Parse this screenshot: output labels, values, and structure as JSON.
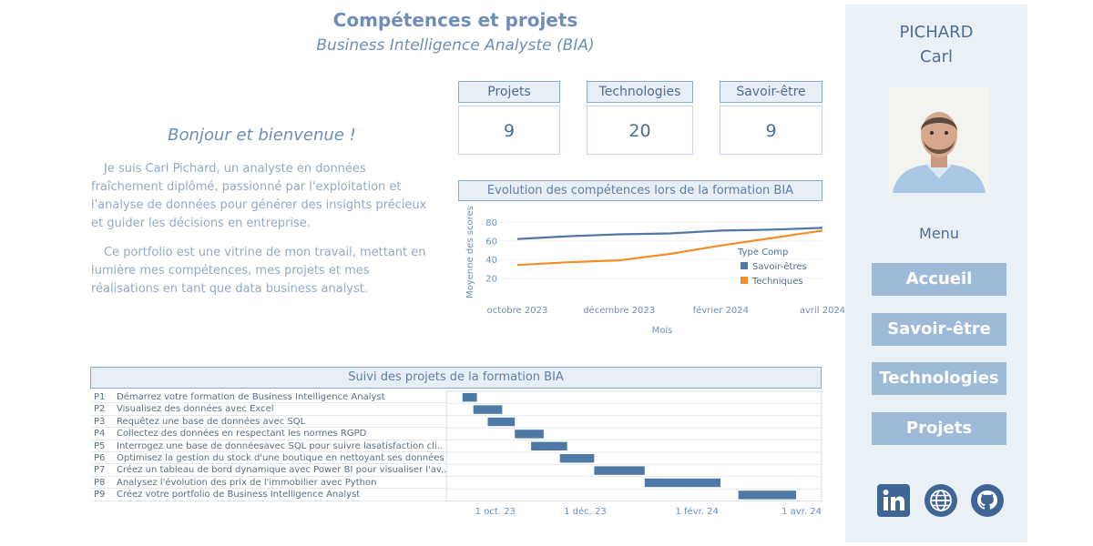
{
  "header": {
    "title": "Compétences et projets",
    "subtitle": "Business Intelligence  Analyste (BIA)"
  },
  "intro": {
    "welcome": "Bonjour et bienvenue !",
    "paragraph1": "Je suis Carl Pichard, un analyste en données fraîchement diplômé, passionné par l'exploitation et l'analyse de données pour générer des insights précieux et guider les décisions en entreprise.",
    "paragraph2": "Ce portfolio est une vitrine de mon travail, mettant en lumière mes compétences, mes projets et mes réalisations en tant que data business analyst."
  },
  "kpis": [
    {
      "label": "Projets",
      "value": "9"
    },
    {
      "label": "Technologies",
      "value": "20"
    },
    {
      "label": "Savoir-être",
      "value": "9"
    }
  ],
  "chart_data": [
    {
      "type": "line",
      "title": "Evolution des compétences lors de la formation BIA",
      "xlabel": "Mois",
      "ylabel": "Moyenne des scores",
      "x": [
        "octobre 2023",
        "novembre 2023",
        "décembre 2023",
        "janvier 2024",
        "février 2024",
        "mars 2024",
        "avril 2024"
      ],
      "x_tick_labels": [
        "octobre 2023",
        "décembre 2023",
        "février 2024",
        "avril 2024"
      ],
      "yticks": [
        20,
        40,
        60,
        80
      ],
      "ylim": [
        0,
        90
      ],
      "legend_title": "Type Comp",
      "series": [
        {
          "name": "Savoir-êtres",
          "color": "#4e79a7",
          "values": [
            62,
            65,
            67,
            68,
            71,
            72,
            74
          ]
        },
        {
          "name": "Techniques",
          "color": "#f28e2b",
          "values": [
            34,
            37,
            39,
            46,
            55,
            63,
            71
          ]
        }
      ]
    },
    {
      "type": "gantt",
      "title": "Suivi des projets de la formation BIA",
      "color": "#4e79a7",
      "axis_range": [
        "2023-09-15",
        "2024-04-01"
      ],
      "axis_ticks": [
        {
          "label": "1 oct. 23",
          "date": "2023-10-01"
        },
        {
          "label": "1 déc. 23",
          "date": "2023-12-01"
        },
        {
          "label": "1 févr. 24",
          "date": "2024-02-01"
        },
        {
          "label": "1 avr. 24",
          "date": "2024-04-01"
        }
      ],
      "tasks": [
        {
          "id": "P1",
          "name": "Démarrez votre formation de Business Intelligence Analyst",
          "start": "2023-09-24",
          "end": "2023-10-02"
        },
        {
          "id": "P2",
          "name": "Visualisez des données avec Excel",
          "start": "2023-09-30",
          "end": "2023-10-16"
        },
        {
          "id": "P3",
          "name": "Requêtez une base de données avec SQL",
          "start": "2023-10-08",
          "end": "2023-10-23"
        },
        {
          "id": "P4",
          "name": "Collectez des données en respectant les normes RGPD",
          "start": "2023-10-23",
          "end": "2023-11-08"
        },
        {
          "id": "P5",
          "name": "Interrogez une base de donnéesavec SQL pour suivre lasatisfaction cli..",
          "start": "2023-11-01",
          "end": "2023-11-21"
        },
        {
          "id": "P6",
          "name": "Optimisez la gestion du stock d'une boutique en nettoyant ses données",
          "start": "2023-11-17",
          "end": "2023-12-06"
        },
        {
          "id": "P7",
          "name": "Créez un tableau de bord dynamique avec Power BI pour visualiser l'av..",
          "start": "2023-12-06",
          "end": "2024-01-03"
        },
        {
          "id": "P8",
          "name": "Analysez l'évolution des prix de l'immobilier avec Python",
          "start": "2024-01-03",
          "end": "2024-02-14"
        },
        {
          "id": "P9",
          "name": "Créez votre portfolio de Business Intelligence Analyst",
          "start": "2024-02-24",
          "end": "2024-03-27"
        }
      ]
    }
  ],
  "sidebar": {
    "last_name": "PICHARD",
    "first_name": "Carl",
    "menu_label": "Menu",
    "nav": [
      "Accueil",
      "Savoir-être",
      "Technologies",
      "Projets"
    ],
    "social_icons": [
      "linkedin-icon",
      "globe-icon",
      "github-icon"
    ],
    "accent_color": "#9dbbd9",
    "icon_color": "#3f6596"
  }
}
